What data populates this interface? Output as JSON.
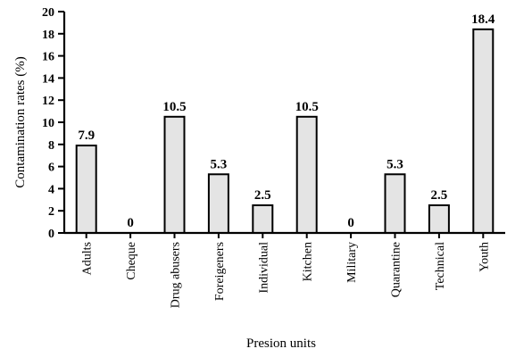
{
  "chart_data": {
    "type": "bar",
    "title": "",
    "xlabel": "Presion units",
    "ylabel": "Contamination rates (%)",
    "ylim": [
      0,
      20
    ],
    "yticks": [
      0,
      2,
      4,
      6,
      8,
      10,
      12,
      14,
      16,
      18,
      20
    ],
    "categories": [
      "Adults",
      "Cheque",
      "Drug abusers",
      "Foreigeners",
      "Individual",
      "Kitchen",
      "Military",
      "Quarantine",
      "Technical",
      "Youth"
    ],
    "values": [
      7.9,
      0,
      10.5,
      5.3,
      2.5,
      10.5,
      0,
      5.3,
      2.5,
      18.4
    ],
    "data_labels": [
      "7.9",
      "0",
      "10.5",
      "5.3",
      "2.5",
      "10.5",
      "0",
      "5.3",
      "2.5",
      "18.4"
    ],
    "grid": false,
    "legend": "none",
    "colors": {
      "bar_fill": "#e4e4e4",
      "bar_stroke": "#000000"
    }
  }
}
